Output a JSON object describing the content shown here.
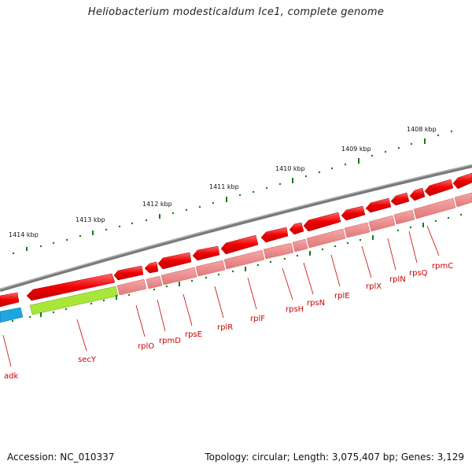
{
  "title": "Heliobacterium modesticaldum Ice1, complete genome",
  "footer": {
    "accession": "Accession: NC_010337",
    "stats": "Topology: circular; Length: 3,075,407 bp; Genes: 3,129"
  },
  "kbp_labels": [
    "1408 kbp",
    "1409 kbp",
    "1410 kbp",
    "1411 kbp",
    "1412 kbp",
    "1413 kbp",
    "1414 kbp"
  ],
  "gene_labels": [
    "adk",
    "secY",
    "rplO",
    "rpmD",
    "rpsE",
    "rplR",
    "rplF",
    "rpsH",
    "rpsN",
    "rplE",
    "rplX",
    "rplN",
    "rpsQ",
    "rpmC"
  ],
  "colors": {
    "backbone": "#7a7a7a",
    "gene_red": "#ee0000",
    "gene_pink": "#f08a8a",
    "gene_green": "#a8e63a",
    "gene_blue": "#1fa5e0",
    "ticks": "#1a7a1a",
    "label": "#cc0000"
  }
}
